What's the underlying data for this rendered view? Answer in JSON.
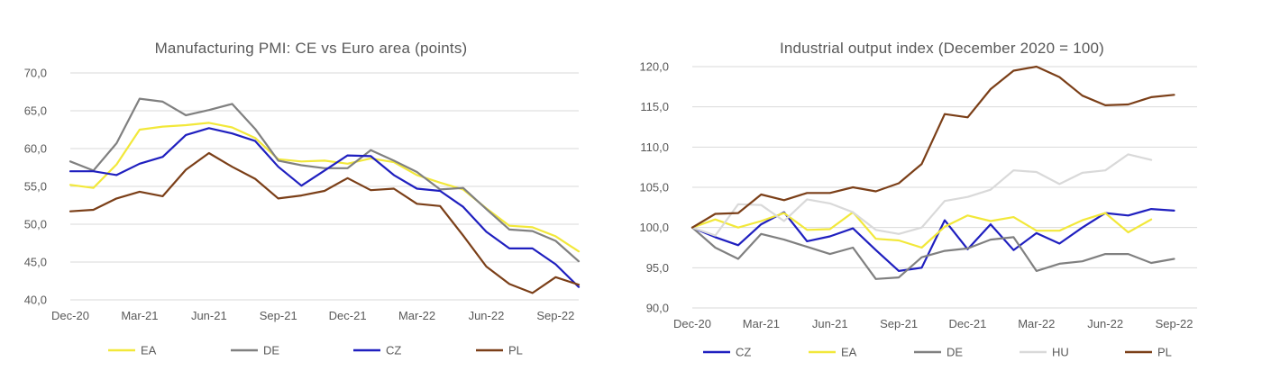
{
  "chart_data": [
    {
      "type": "line",
      "title": "Manufacturing PMI: CE vs Euro area (points)",
      "xlabel": "",
      "ylabel": "",
      "ylim": [
        40,
        70
      ],
      "yticks": [
        "40,0",
        "45,0",
        "50,0",
        "55,0",
        "60,0",
        "65,0",
        "70,0"
      ],
      "y_tick_values": [
        40,
        45,
        50,
        55,
        60,
        65,
        70
      ],
      "x_months": [
        "Dec-20",
        "Jan-21",
        "Feb-21",
        "Mar-21",
        "Apr-21",
        "May-21",
        "Jun-21",
        "Jul-21",
        "Aug-21",
        "Sep-21",
        "Oct-21",
        "Nov-21",
        "Dec-21",
        "Jan-22",
        "Feb-22",
        "Mar-22",
        "Apr-22",
        "May-22",
        "Jun-22",
        "Jul-22",
        "Aug-22",
        "Sep-22",
        "Oct-22"
      ],
      "x_tick_labels": [
        "Dec-20",
        "Mar-21",
        "Jun-21",
        "Sep-21",
        "Dec-21",
        "Mar-22",
        "Jun-22",
        "Sep-22"
      ],
      "x_tick_index": [
        0,
        3,
        6,
        9,
        12,
        15,
        18,
        21
      ],
      "grid": true,
      "legend_position": "bottom",
      "series": [
        {
          "name": "EA",
          "color": "#f2e83a",
          "values": [
            55.2,
            54.8,
            57.9,
            62.5,
            62.9,
            63.1,
            63.4,
            62.8,
            61.4,
            58.6,
            58.3,
            58.4,
            58.0,
            58.7,
            58.2,
            56.5,
            55.5,
            54.6,
            52.1,
            49.8,
            49.6,
            48.4,
            46.4
          ]
        },
        {
          "name": "DE",
          "color": "#808080",
          "values": [
            58.3,
            57.1,
            60.7,
            66.6,
            66.2,
            64.4,
            65.1,
            65.9,
            62.6,
            58.4,
            57.8,
            57.4,
            57.4,
            59.8,
            58.4,
            56.9,
            54.6,
            54.8,
            52.0,
            49.3,
            49.1,
            47.8,
            45.1
          ]
        },
        {
          "name": "CZ",
          "color": "#1f1fbf",
          "values": [
            57.0,
            57.0,
            56.5,
            58.0,
            58.9,
            61.8,
            62.7,
            62.0,
            61.0,
            57.6,
            55.1,
            57.1,
            59.1,
            59.0,
            56.5,
            54.7,
            54.4,
            52.3,
            49.0,
            46.8,
            46.8,
            44.7,
            41.7
          ]
        },
        {
          "name": "PL",
          "color": "#7b3f18",
          "values": [
            51.7,
            51.9,
            53.4,
            54.3,
            53.7,
            57.2,
            59.4,
            57.6,
            56.0,
            53.4,
            53.8,
            54.4,
            56.1,
            54.5,
            54.7,
            52.7,
            52.4,
            48.5,
            44.4,
            42.1,
            40.9,
            43.0,
            42.0
          ]
        }
      ]
    },
    {
      "type": "line",
      "title": "Industrial output index (December 2020 = 100)",
      "xlabel": "",
      "ylabel": "",
      "ylim": [
        90,
        120
      ],
      "yticks": [
        "90,0",
        "95,0",
        "100,0",
        "105,0",
        "110,0",
        "115,0",
        "120,0"
      ],
      "y_tick_values": [
        90,
        95,
        100,
        105,
        110,
        115,
        120
      ],
      "x_months": [
        "Dec-20",
        "Jan-21",
        "Feb-21",
        "Mar-21",
        "Apr-21",
        "May-21",
        "Jun-21",
        "Jul-21",
        "Aug-21",
        "Sep-21",
        "Oct-21",
        "Nov-21",
        "Dec-21",
        "Jan-22",
        "Feb-22",
        "Mar-22",
        "Apr-22",
        "May-22",
        "Jun-22",
        "Jul-22",
        "Aug-22",
        "Sep-22"
      ],
      "x_tick_labels": [
        "Dec-20",
        "Mar-21",
        "Jun-21",
        "Sep-21",
        "Dec-21",
        "Mar-22",
        "Jun-22",
        "Sep-22"
      ],
      "x_tick_index": [
        0,
        3,
        6,
        9,
        12,
        15,
        18,
        21
      ],
      "grid": true,
      "legend_position": "bottom",
      "series": [
        {
          "name": "CZ",
          "color": "#1f1fbf",
          "values": [
            100.0,
            98.8,
            97.8,
            100.4,
            101.9,
            98.3,
            98.9,
            99.9,
            97.2,
            94.6,
            95.0,
            100.9,
            97.3,
            100.4,
            97.2,
            99.3,
            98.0,
            100.0,
            101.8,
            101.5,
            102.3,
            102.1
          ]
        },
        {
          "name": "EA",
          "color": "#f2e83a",
          "values": [
            100.0,
            101.0,
            100.0,
            100.8,
            101.8,
            99.7,
            99.8,
            101.9,
            98.6,
            98.4,
            97.5,
            100.1,
            101.5,
            100.8,
            101.3,
            99.6,
            99.6,
            100.9,
            101.8,
            99.4,
            101.0
          ]
        },
        {
          "name": "DE",
          "color": "#808080",
          "values": [
            100.0,
            97.5,
            96.1,
            99.2,
            98.5,
            97.6,
            96.7,
            97.5,
            93.6,
            93.8,
            96.3,
            97.1,
            97.4,
            98.5,
            98.8,
            94.6,
            95.5,
            95.8,
            96.7,
            96.7,
            95.6,
            96.1
          ]
        },
        {
          "name": "HU",
          "color": "#d9d9d9",
          "values": [
            100.0,
            99.0,
            102.9,
            102.8,
            100.8,
            103.5,
            103.0,
            101.9,
            99.7,
            99.2,
            100.0,
            103.3,
            103.8,
            104.7,
            107.1,
            106.9,
            105.4,
            106.8,
            107.1,
            109.1,
            108.4
          ]
        },
        {
          "name": "PL",
          "color": "#7b3f18",
          "values": [
            100.0,
            101.7,
            101.8,
            104.1,
            103.4,
            104.3,
            104.3,
            105.0,
            104.5,
            105.5,
            107.9,
            114.1,
            113.7,
            117.2,
            119.5,
            120.0,
            118.7,
            116.4,
            115.2,
            115.3,
            116.2,
            116.5
          ]
        }
      ]
    }
  ]
}
